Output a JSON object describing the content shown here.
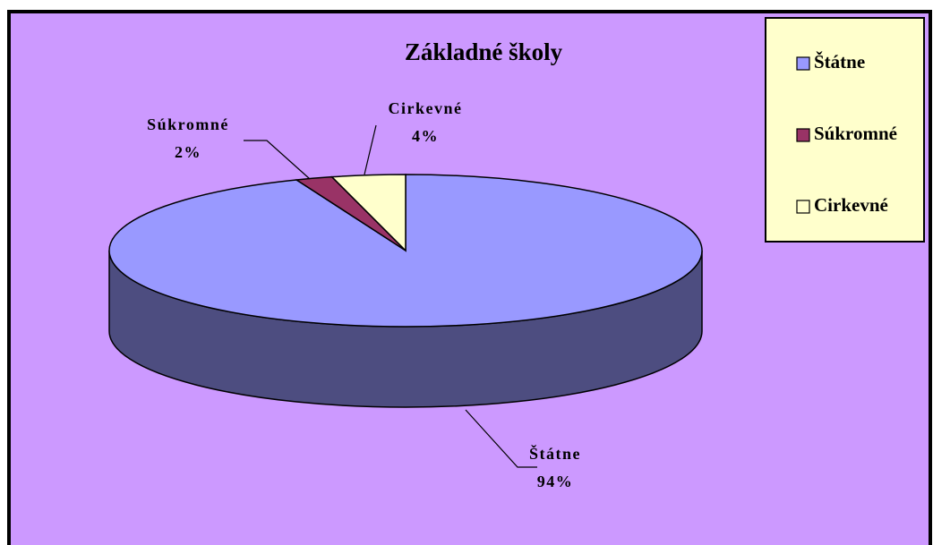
{
  "chart_data": {
    "type": "pie3d",
    "title": "Základné školy",
    "categories": [
      "Štátne",
      "Súkromné",
      "Cirkevné"
    ],
    "values": [
      94,
      2,
      4
    ],
    "value_labels": [
      "94%",
      "2%",
      "4%"
    ],
    "colors": [
      "#9999ff",
      "#993366",
      "#ffffcc"
    ],
    "legend": "right"
  }
}
